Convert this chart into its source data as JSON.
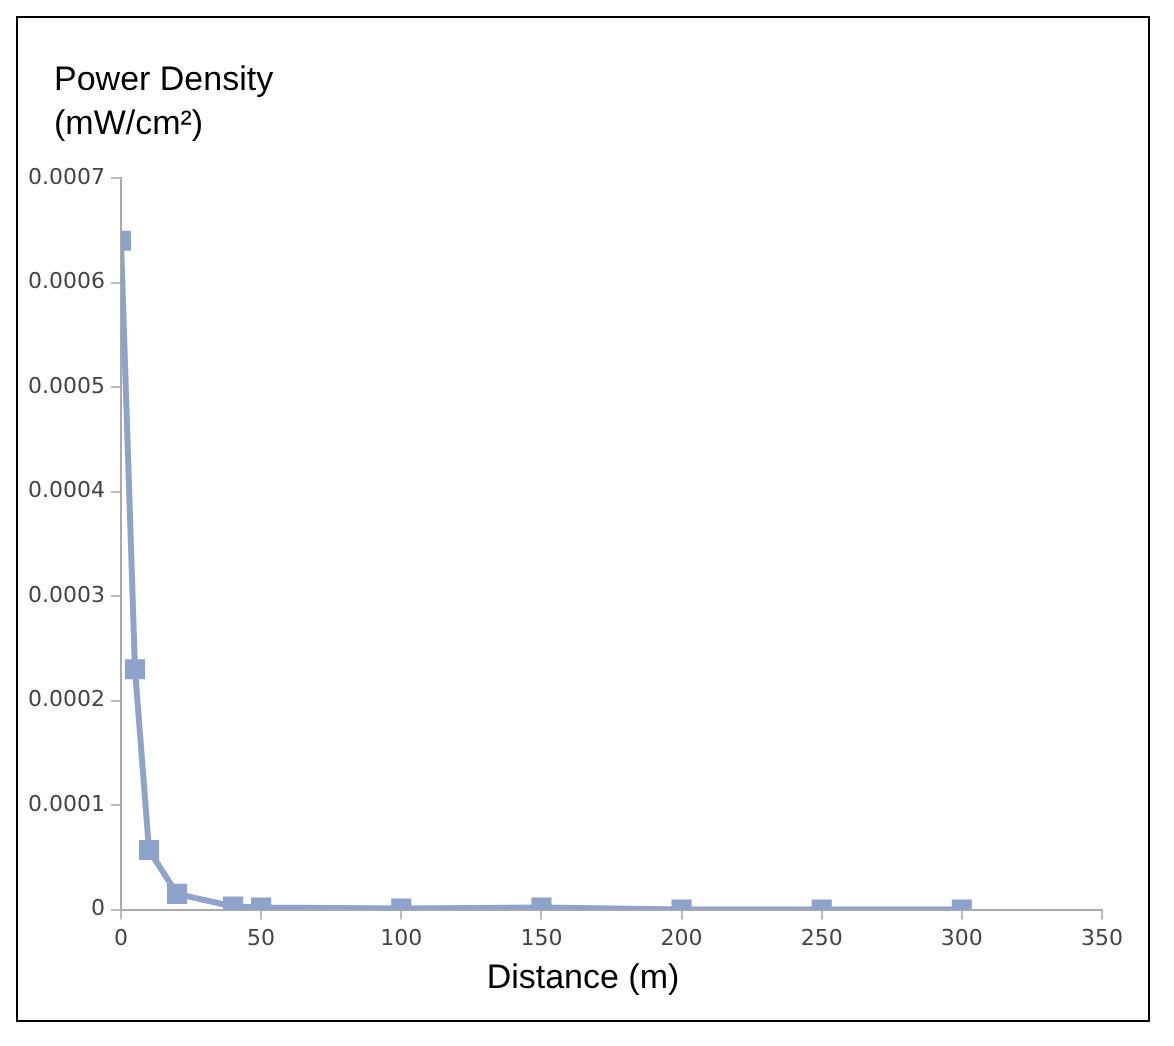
{
  "chart_data": {
    "type": "line",
    "ylabel": "Power Density (mW/cm²)",
    "xlabel": "Distance (m)",
    "x": [
      0,
      5,
      10,
      20,
      40,
      50,
      100,
      150,
      200,
      250,
      300
    ],
    "series": [
      {
        "color": "#8da3cc",
        "values": [
          0.00064,
          0.00023,
          5.7e-05,
          1.5e-05,
          3e-06,
          2e-06,
          1e-06,
          2e-06,
          0,
          0,
          0
        ]
      }
    ],
    "xlim": [
      0,
      350
    ],
    "xticks": [
      0,
      50,
      100,
      150,
      200,
      250,
      300,
      350
    ],
    "ylim": [
      0,
      0.0007
    ],
    "yticks": [
      0,
      0.0001,
      0.0002,
      0.0003,
      0.0004,
      0.0005,
      0.0006,
      0.0007
    ],
    "grid": false,
    "legend": false,
    "marker": "square",
    "line_style": "solid"
  }
}
